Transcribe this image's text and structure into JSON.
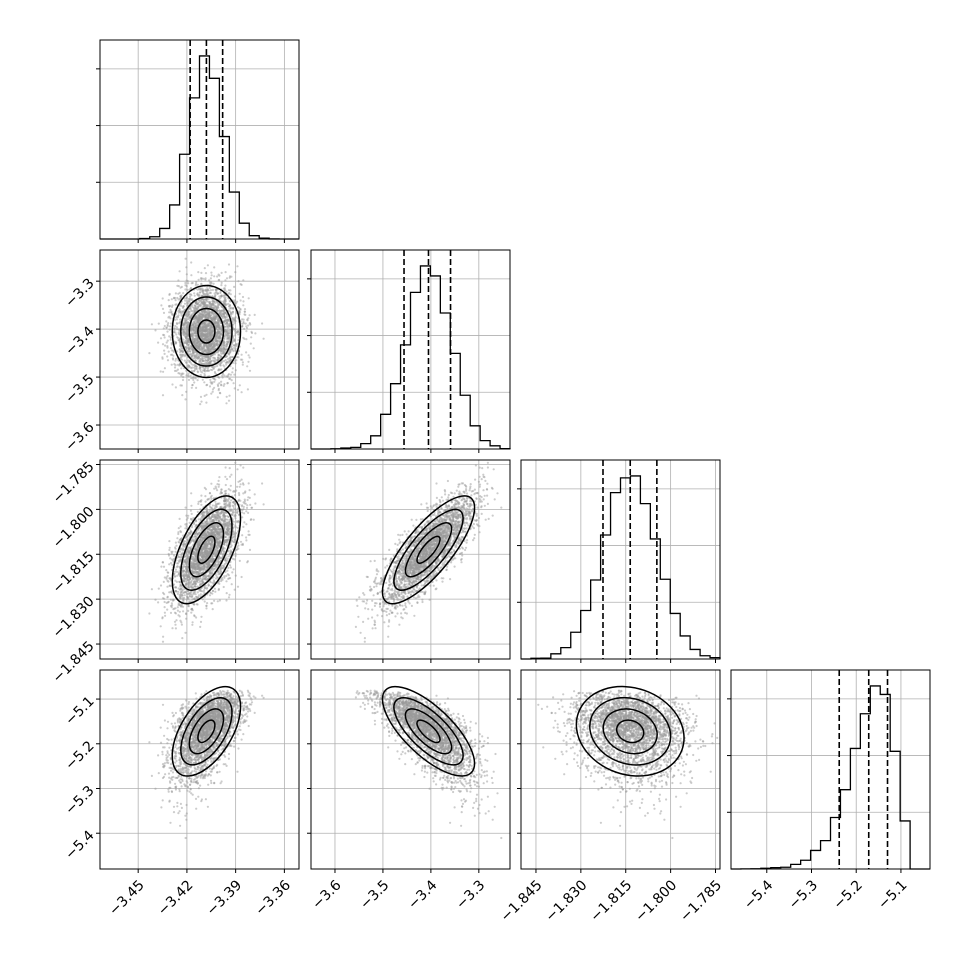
{
  "chart_data": {
    "type": "corner",
    "parameters": [
      {
        "name": "",
        "median": -3.408,
        "q16": -3.418,
        "q84": -3.398,
        "sigma": 0.0105,
        "range": [
          -3.4735,
          -3.351
        ],
        "ticks": [
          -3.45,
          -3.42,
          -3.39,
          -3.36
        ],
        "tick_labels": [
          "−3.45",
          "−3.42",
          "−3.39",
          "−3.36"
        ]
      },
      {
        "name": "",
        "median": -3.405,
        "q16": -3.456,
        "q84": -3.359,
        "sigma": 0.048,
        "range": [
          -3.65,
          -3.235
        ],
        "ticks": [
          -3.6,
          -3.5,
          -3.4,
          -3.3
        ],
        "tick_labels": [
          "−3.6",
          "−3.5",
          "−3.4",
          "−3.3"
        ]
      },
      {
        "name": "",
        "median": -1.8135,
        "q16": -1.8226,
        "q84": -1.8046,
        "sigma": 0.009,
        "range": [
          -1.85,
          -1.7835
        ],
        "ticks": [
          -1.845,
          -1.83,
          -1.815,
          -1.8,
          -1.785
        ],
        "tick_labels": [
          "−1.845",
          "−1.830",
          "−1.815",
          "−1.800",
          "−1.785"
        ]
      },
      {
        "name": "",
        "median": -5.172,
        "q16": -5.238,
        "q84": -5.13,
        "sigma": 0.05,
        "skew": -0.6,
        "range": [
          -5.48,
          -5.035
        ],
        "ticks": [
          -5.4,
          -5.3,
          -5.2,
          -5.1
        ],
        "tick_labels": [
          "−5.4",
          "−5.3",
          "−5.2",
          "−5.1"
        ]
      }
    ],
    "correlations": [
      [
        1,
        0,
        0.58,
        0.55
      ],
      [
        0,
        1,
        0.78,
        -0.72
      ],
      [
        0.58,
        0.78,
        1,
        -0.15
      ],
      [
        0.55,
        -0.72,
        -0.15,
        1
      ]
    ],
    "histogram_bins": 20,
    "contour_levels": [
      0.5,
      1.0,
      1.5,
      2.0
    ],
    "quantile_lines": "dashed",
    "grid": true,
    "colors": {
      "line": "#000000",
      "points": "#9a9a9a",
      "grid": "#b0b0b0"
    }
  }
}
